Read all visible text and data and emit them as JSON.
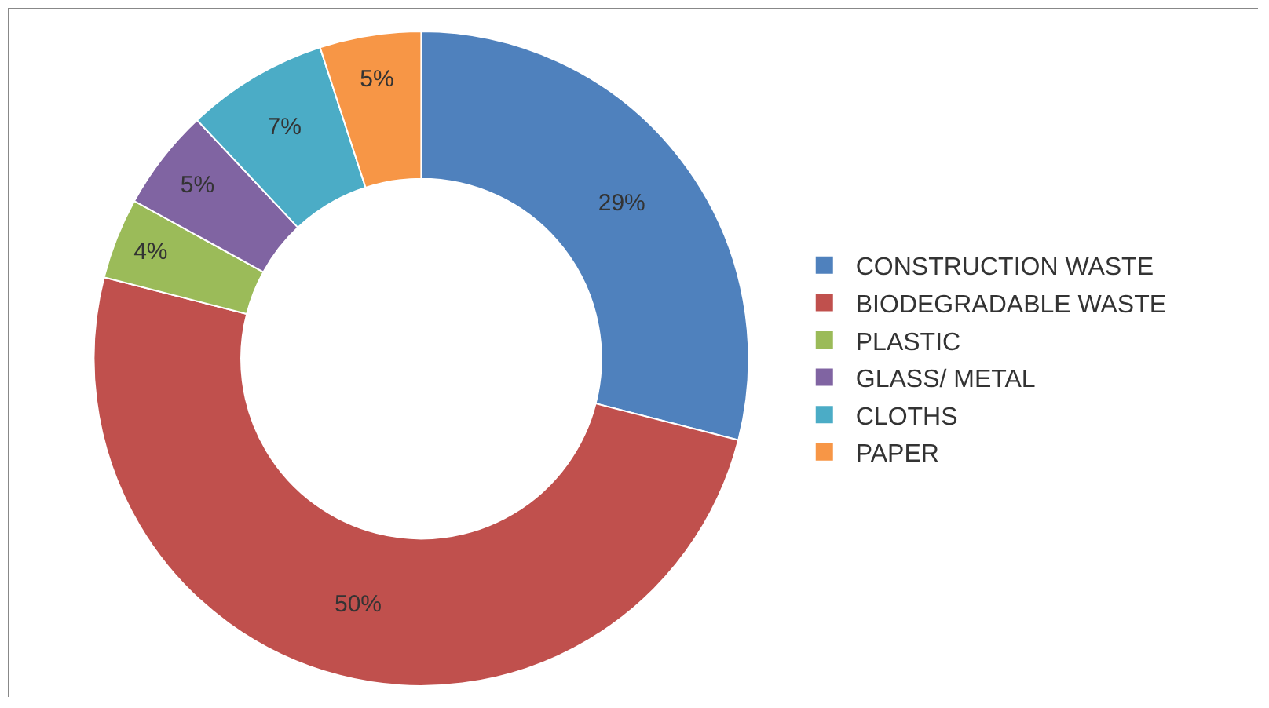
{
  "chart_data": {
    "type": "donut",
    "categories": [
      "CONSTRUCTION WASTE",
      "BIODEGRADABLE WASTE",
      "PLASTIC",
      "GLASS/ METAL",
      "CLOTHS",
      "PAPER"
    ],
    "values": [
      29,
      50,
      4,
      5,
      7,
      5
    ],
    "value_labels": [
      "29%",
      "50%",
      "4%",
      "5%",
      "7%",
      "5%"
    ],
    "colors": [
      "#4f81bd",
      "#c0504d",
      "#9bbb59",
      "#8064a2",
      "#4bacc6",
      "#f79646"
    ],
    "legend": "right"
  }
}
